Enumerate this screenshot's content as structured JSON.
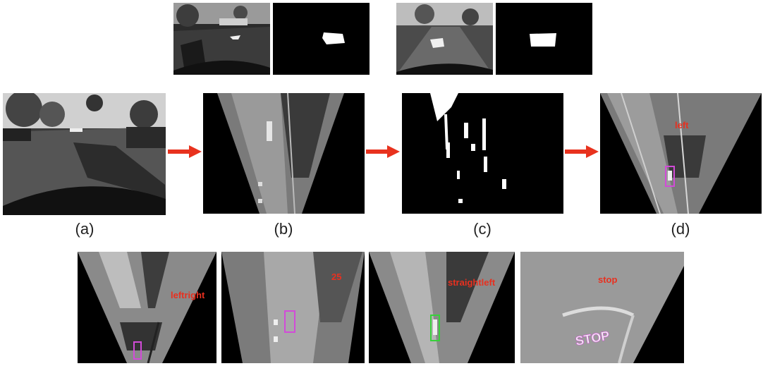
{
  "captions": {
    "a": "(a)",
    "b": "(b)",
    "c": "(c)",
    "d": "(d)"
  },
  "overlay_labels": {
    "panel_d": "left",
    "leftright": "leftright",
    "speed": "25",
    "straightleft": "straightleft",
    "stop": "stop"
  },
  "stencil_text": {
    "stop_marking": "STOP"
  },
  "colors": {
    "arrow": "#e8321e",
    "label": "#e8301f",
    "detection_box": "#d24bd8",
    "detection_green": "#37d13a"
  }
}
